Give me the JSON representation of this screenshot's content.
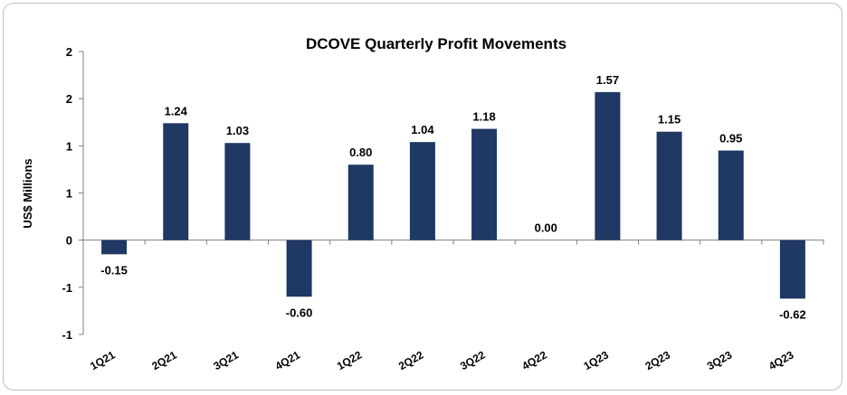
{
  "chart_data": {
    "type": "bar",
    "title": "DCOVE Quarterly Profit Movements",
    "ylabel": "US$ Millions",
    "xlabel": "",
    "ylim": [
      -1,
      2
    ],
    "ytick_labels": [
      "-1",
      "-1",
      "0",
      "1",
      "1",
      "2",
      "2"
    ],
    "grid": false,
    "legend": "none",
    "categories": [
      "1Q21",
      "2Q21",
      "3Q21",
      "4Q21",
      "1Q22",
      "2Q22",
      "3Q22",
      "4Q22",
      "1Q23",
      "2Q23",
      "3Q23",
      "4Q23"
    ],
    "values": [
      -0.15,
      1.24,
      1.03,
      -0.6,
      0.8,
      1.04,
      1.18,
      0.0,
      1.57,
      1.15,
      0.95,
      -0.62
    ],
    "data_labels": [
      "-0.15",
      "1.24",
      "1.03",
      "-0.60",
      "0.80",
      "1.04",
      "1.18",
      "0.00",
      "1.57",
      "1.15",
      "0.95",
      "-0.62"
    ],
    "bar_color": "#1f3864"
  }
}
